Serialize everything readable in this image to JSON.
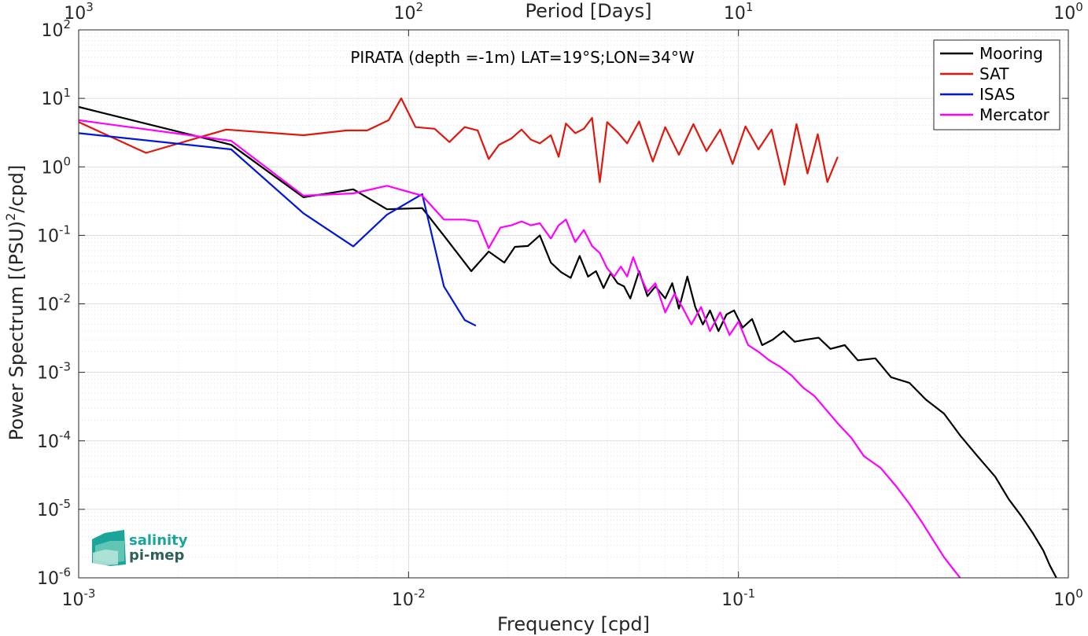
{
  "chart_data": {
    "type": "line",
    "xlabel": "Frequency [cpd]",
    "ylabel": "Power Spectrum [(PSU)",
    "ylabel_sup": "2",
    "ylabel_tail": "/cpd]",
    "top_xlabel": "Period [Days]",
    "annotation": "PIRATA (depth =-1m) LAT=19°S;LON=34°W",
    "x_scale": "log",
    "y_scale": "log",
    "xlim": [
      0.001,
      1
    ],
    "ylim": [
      1e-06,
      100
    ],
    "top_xlim": [
      1000,
      1
    ],
    "grid": true,
    "legend_position": "top-right",
    "x_ticks": [
      {
        "value": 0.001,
        "base": "10",
        "exp": "-3"
      },
      {
        "value": 0.01,
        "base": "10",
        "exp": "-2"
      },
      {
        "value": 0.1,
        "base": "10",
        "exp": "-1"
      },
      {
        "value": 1,
        "base": "10",
        "exp": "0"
      }
    ],
    "top_ticks": [
      {
        "value": 1000,
        "base": "10",
        "exp": "3"
      },
      {
        "value": 100,
        "base": "10",
        "exp": "2"
      },
      {
        "value": 10,
        "base": "10",
        "exp": "1"
      },
      {
        "value": 1,
        "base": "10",
        "exp": "0"
      }
    ],
    "y_ticks": [
      {
        "value": 1e-06,
        "base": "10",
        "exp": "-6"
      },
      {
        "value": 1e-05,
        "base": "10",
        "exp": "-5"
      },
      {
        "value": 0.0001,
        "base": "10",
        "exp": "-4"
      },
      {
        "value": 0.001,
        "base": "10",
        "exp": "-3"
      },
      {
        "value": 0.01,
        "base": "10",
        "exp": "-2"
      },
      {
        "value": 0.1,
        "base": "10",
        "exp": "-1"
      },
      {
        "value": 1,
        "base": "10",
        "exp": "0"
      },
      {
        "value": 10,
        "base": "10",
        "exp": "1"
      },
      {
        "value": 100,
        "base": "10",
        "exp": "2"
      }
    ],
    "series": [
      {
        "name": "Mooring",
        "color": "#000000",
        "x": [
          0.001,
          0.0029,
          0.0048,
          0.0068,
          0.0086,
          0.011,
          0.013,
          0.0155,
          0.0175,
          0.0195,
          0.021,
          0.023,
          0.025,
          0.027,
          0.029,
          0.031,
          0.033,
          0.035,
          0.037,
          0.039,
          0.041,
          0.043,
          0.045,
          0.047,
          0.05,
          0.053,
          0.056,
          0.06,
          0.063,
          0.066,
          0.07,
          0.074,
          0.078,
          0.082,
          0.087,
          0.092,
          0.097,
          0.103,
          0.11,
          0.118,
          0.127,
          0.137,
          0.148,
          0.16,
          0.175,
          0.19,
          0.21,
          0.23,
          0.26,
          0.29,
          0.33,
          0.37,
          0.42,
          0.47,
          0.53,
          0.6,
          0.66,
          0.72,
          0.78,
          0.84,
          0.88,
          0.92
        ],
        "y": [
          7.5,
          2.1,
          0.36,
          0.47,
          0.24,
          0.25,
          0.09,
          0.03,
          0.058,
          0.04,
          0.068,
          0.07,
          0.1,
          0.04,
          0.029,
          0.024,
          0.05,
          0.025,
          0.03,
          0.017,
          0.028,
          0.02,
          0.018,
          0.012,
          0.03,
          0.013,
          0.018,
          0.012,
          0.02,
          0.0085,
          0.025,
          0.009,
          0.005,
          0.008,
          0.004,
          0.007,
          0.008,
          0.0045,
          0.006,
          0.0025,
          0.003,
          0.004,
          0.0028,
          0.003,
          0.0032,
          0.0022,
          0.0025,
          0.0015,
          0.0016,
          0.00085,
          0.0007,
          0.0004,
          0.00025,
          0.00012,
          6e-05,
          3e-05,
          1.4e-05,
          8e-06,
          4.5e-06,
          2.5e-06,
          1.5e-06,
          1e-06
        ]
      },
      {
        "name": "SAT",
        "color": "#e0170d",
        "x": [
          0.001,
          0.0016,
          0.0028,
          0.0048,
          0.0065,
          0.0075,
          0.0087,
          0.0095,
          0.0105,
          0.012,
          0.0133,
          0.0148,
          0.0162,
          0.0175,
          0.0188,
          0.0205,
          0.022,
          0.0235,
          0.025,
          0.027,
          0.0285,
          0.03,
          0.032,
          0.034,
          0.036,
          0.038,
          0.04,
          0.043,
          0.046,
          0.05,
          0.055,
          0.06,
          0.066,
          0.073,
          0.08,
          0.088,
          0.096,
          0.105,
          0.115,
          0.126,
          0.138,
          0.15,
          0.162,
          0.174,
          0.186,
          0.2
        ],
        "y": [
          4.5,
          1.6,
          3.5,
          2.9,
          3.4,
          3.4,
          4.8,
          10.0,
          3.8,
          3.6,
          2.3,
          3.8,
          3.4,
          1.3,
          2.1,
          2.6,
          3.5,
          2.5,
          2.2,
          2.9,
          1.4,
          4.3,
          3.1,
          3.6,
          5.2,
          0.6,
          4.5,
          3.2,
          2.2,
          4.6,
          1.2,
          3.8,
          1.5,
          4.2,
          1.7,
          3.5,
          1.1,
          3.9,
          1.8,
          3.5,
          0.55,
          4.2,
          0.8,
          3.0,
          0.6,
          1.4
        ]
      },
      {
        "name": "ISAS",
        "color": "#0017d9",
        "x": [
          0.001,
          0.0029,
          0.0048,
          0.0068,
          0.0086,
          0.011,
          0.0128,
          0.0148,
          0.016
        ],
        "y": [
          3.1,
          1.8,
          0.21,
          0.069,
          0.2,
          0.4,
          0.018,
          0.0058,
          0.0048
        ]
      },
      {
        "name": "Mercator",
        "color": "#ff00ff",
        "x": [
          0.001,
          0.0029,
          0.0048,
          0.0068,
          0.0086,
          0.011,
          0.0128,
          0.0148,
          0.0162,
          0.0175,
          0.019,
          0.0205,
          0.022,
          0.0235,
          0.025,
          0.027,
          0.0285,
          0.03,
          0.032,
          0.034,
          0.036,
          0.038,
          0.04,
          0.042,
          0.044,
          0.046,
          0.048,
          0.05,
          0.053,
          0.056,
          0.06,
          0.064,
          0.068,
          0.072,
          0.077,
          0.082,
          0.088,
          0.094,
          0.1,
          0.107,
          0.115,
          0.124,
          0.134,
          0.145,
          0.157,
          0.17,
          0.185,
          0.2,
          0.22,
          0.24,
          0.27,
          0.3,
          0.33,
          0.36,
          0.39,
          0.42,
          0.45,
          0.47
        ],
        "y": [
          4.8,
          2.4,
          0.38,
          0.41,
          0.53,
          0.38,
          0.17,
          0.17,
          0.16,
          0.065,
          0.13,
          0.14,
          0.16,
          0.14,
          0.15,
          0.09,
          0.14,
          0.17,
          0.08,
          0.12,
          0.07,
          0.055,
          0.033,
          0.025,
          0.035,
          0.025,
          0.048,
          0.028,
          0.015,
          0.02,
          0.0075,
          0.014,
          0.0085,
          0.005,
          0.009,
          0.004,
          0.0075,
          0.0035,
          0.0055,
          0.0025,
          0.002,
          0.0015,
          0.0012,
          0.0009,
          0.0006,
          0.00045,
          0.00028,
          0.00018,
          0.00011,
          6e-05,
          4e-05,
          2.2e-05,
          1.2e-05,
          6.5e-06,
          3.5e-06,
          2e-06,
          1.3e-06,
          1e-06
        ]
      }
    ]
  },
  "logo": {
    "line1": "salinity",
    "line2": "pi-mep",
    "color1": "#1aa59a",
    "color2": "#2f5f56"
  }
}
